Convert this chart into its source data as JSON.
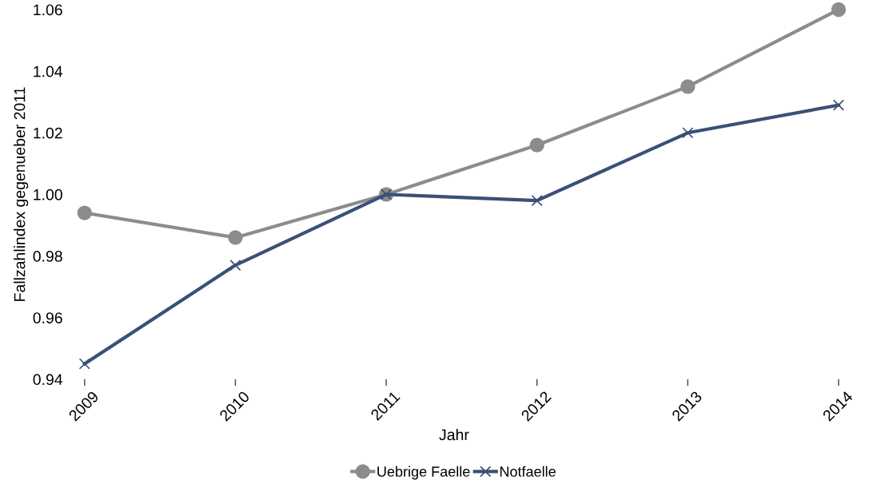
{
  "chart_data": {
    "type": "line",
    "xlabel": "Jahr",
    "ylabel": "Fallzahlindex gegenueber 2011",
    "categories": [
      "2009",
      "2010",
      "2011",
      "2012",
      "2013",
      "2014"
    ],
    "series": [
      {
        "name": "Uebrige Faelle",
        "color": "#8c8c8c",
        "marker": "circle",
        "values": [
          0.994,
          0.986,
          1.0,
          1.016,
          1.035,
          1.06
        ]
      },
      {
        "name": "Notfaelle",
        "color": "#3a5078",
        "marker": "cross",
        "values": [
          0.945,
          0.977,
          1.0,
          0.998,
          1.02,
          1.029
        ]
      }
    ],
    "ylim": [
      0.94,
      1.06
    ],
    "yticks": [
      {
        "value": 0.94,
        "label": "0.94"
      },
      {
        "value": 0.96,
        "label": "0.96"
      },
      {
        "value": 0.98,
        "label": "0.98"
      },
      {
        "value": 1.0,
        "label": "1.00"
      },
      {
        "value": 1.02,
        "label": "1.02"
      },
      {
        "value": 1.04,
        "label": "1.04"
      },
      {
        "value": 1.06,
        "label": "1.06"
      }
    ],
    "grid": false,
    "legend": "bottom",
    "line_style": "solid"
  }
}
